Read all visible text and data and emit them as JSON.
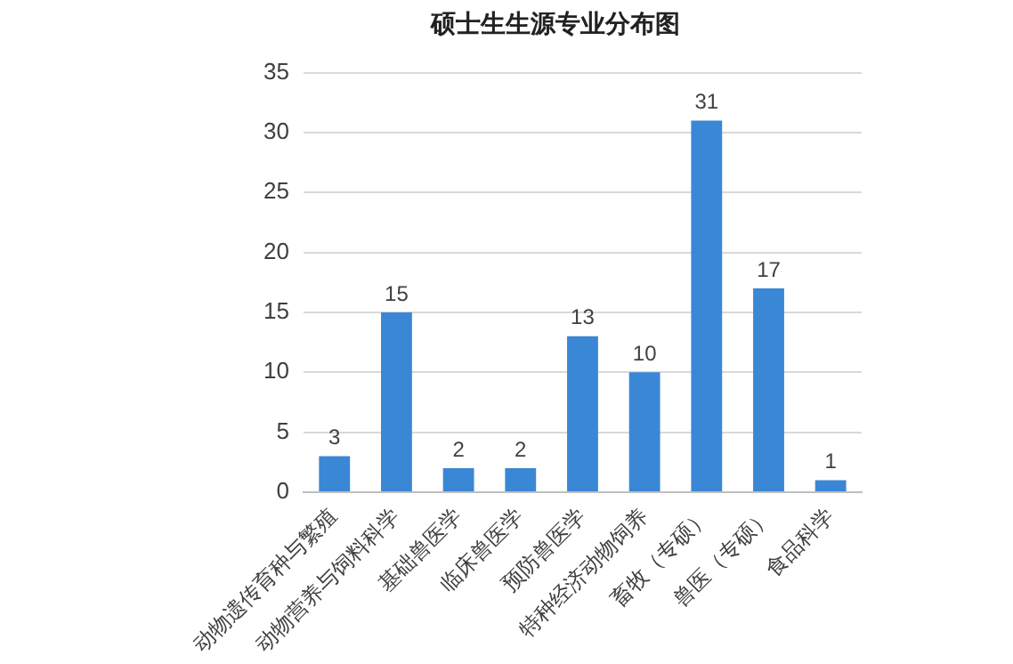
{
  "chart_data": {
    "type": "bar",
    "title": "硕士生生源专业分布图",
    "categories": [
      "动物遗传育种与繁殖",
      "动物营养与饲料科学",
      "基础兽医学",
      "临床兽医学",
      "预防兽医学",
      "特种经济动物饲养",
      "畜牧（专硕）",
      "兽医（专硕）",
      "食品科学"
    ],
    "values": [
      3,
      15,
      2,
      2,
      13,
      10,
      31,
      17,
      1
    ],
    "color": "#3a87d6",
    "ylim": [
      0,
      35
    ],
    "yticks": [
      0,
      5,
      10,
      15,
      20,
      25,
      30,
      35
    ],
    "grid": "y",
    "data_labels": true,
    "legend": false
  }
}
